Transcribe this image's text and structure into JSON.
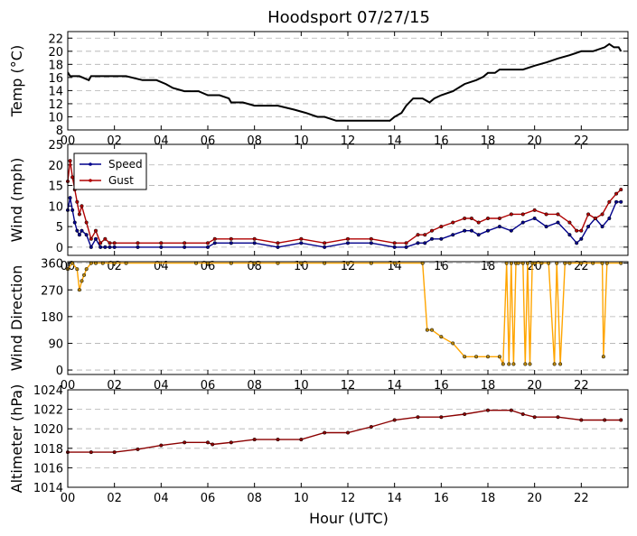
{
  "figure": {
    "title": "Hoodsport 07/27/15",
    "xlabel": "Hour (UTC)"
  },
  "colors": {
    "temp": "#000000",
    "speed": "#00008b",
    "gust": "#b00000",
    "direction_line": "#ffa500",
    "direction_marker": "#b8860b",
    "altimeter": "#8b0000",
    "grid": "#b0b0b0"
  },
  "chart_data": [
    {
      "type": "line",
      "ylabel": "Temp (°C)",
      "xlim": [
        0,
        24
      ],
      "ylim": [
        8,
        23
      ],
      "yticks": [
        "8",
        "10",
        "12",
        "14",
        "16",
        "18",
        "20",
        "22"
      ],
      "xticks": [
        "00",
        "02",
        "04",
        "06",
        "08",
        "10",
        "12",
        "14",
        "16",
        "18",
        "20",
        "22"
      ],
      "grid": true,
      "series": [
        {
          "key": "temp",
          "x": [
            0,
            0.1,
            0.5,
            0.9,
            1.0,
            1.9,
            2.5,
            3.2,
            3.8,
            4.2,
            4.5,
            5.0,
            5.6,
            6.0,
            6.5,
            6.9,
            7.0,
            7.5,
            8.0,
            9.0,
            9.7,
            10.2,
            10.7,
            11.0,
            11.5,
            12.0,
            13.0,
            13.8,
            14.0,
            14.3,
            14.5,
            14.8,
            15.2,
            15.5,
            15.7,
            16.0,
            16.5,
            17.0,
            17.5,
            17.8,
            18.0,
            18.3,
            18.5,
            19.0,
            19.5,
            20.0,
            20.5,
            21.0,
            21.5,
            22.0,
            22.5,
            23.0,
            23.2,
            23.4,
            23.6,
            23.7
          ],
          "y": [
            16.8,
            16.2,
            16.2,
            15.6,
            16.2,
            16.2,
            16.2,
            15.6,
            15.6,
            15.0,
            14.4,
            13.9,
            13.9,
            13.3,
            13.3,
            12.8,
            12.2,
            12.2,
            11.7,
            11.7,
            11.1,
            10.6,
            10.0,
            10.0,
            9.4,
            9.4,
            9.4,
            9.4,
            10.0,
            10.6,
            11.7,
            12.8,
            12.8,
            12.2,
            12.8,
            13.3,
            13.9,
            15.0,
            15.6,
            16.1,
            16.7,
            16.7,
            17.2,
            17.2,
            17.2,
            17.8,
            18.3,
            18.9,
            19.4,
            20.0,
            20.0,
            20.6,
            21.1,
            20.6,
            20.6,
            20.0
          ]
        }
      ]
    },
    {
      "type": "line",
      "ylabel": "Wind (mph)",
      "xlim": [
        0,
        24
      ],
      "ylim": [
        -2,
        25
      ],
      "yticks": [
        "0",
        "5",
        "10",
        "15",
        "20",
        "25"
      ],
      "xticks": [
        "00",
        "02",
        "04",
        "06",
        "08",
        "10",
        "12",
        "14",
        "16",
        "18",
        "20",
        "22"
      ],
      "grid": true,
      "legend": "upper-left",
      "series": [
        {
          "key": "speed",
          "name": "Speed",
          "x": [
            0,
            0.1,
            0.2,
            0.3,
            0.4,
            0.5,
            0.6,
            0.8,
            1.0,
            1.2,
            1.4,
            1.6,
            1.8,
            2.0,
            3.0,
            4.0,
            5.0,
            6.0,
            6.3,
            7.0,
            8.0,
            9.0,
            10.0,
            11.0,
            12.0,
            13.0,
            14.0,
            14.5,
            15.0,
            15.3,
            15.6,
            16.0,
            16.5,
            17.0,
            17.3,
            17.6,
            18.0,
            18.5,
            19.0,
            19.5,
            20.0,
            20.5,
            21.0,
            21.5,
            21.8,
            22.0,
            22.3,
            22.6,
            22.9,
            23.2,
            23.5,
            23.7
          ],
          "y": [
            9,
            12,
            9,
            6,
            4,
            3,
            4,
            3,
            0,
            2,
            0,
            0,
            0,
            0,
            0,
            0,
            0,
            0,
            1,
            1,
            1,
            0,
            1,
            0,
            1,
            1,
            0,
            0,
            1,
            1,
            2,
            2,
            3,
            4,
            4,
            3,
            4,
            5,
            4,
            6,
            7,
            5,
            6,
            3,
            1,
            2,
            5,
            7,
            5,
            7,
            11,
            11
          ]
        },
        {
          "key": "gust",
          "name": "Gust",
          "x": [
            0,
            0.1,
            0.2,
            0.3,
            0.4,
            0.5,
            0.6,
            0.8,
            1.0,
            1.2,
            1.4,
            1.6,
            1.8,
            2.0,
            3.0,
            4.0,
            5.0,
            6.0,
            6.3,
            7.0,
            8.0,
            9.0,
            10.0,
            11.0,
            12.0,
            13.0,
            14.0,
            14.5,
            15.0,
            15.3,
            15.6,
            16.0,
            16.5,
            17.0,
            17.3,
            17.6,
            18.0,
            18.5,
            19.0,
            19.5,
            20.0,
            20.5,
            21.0,
            21.5,
            21.8,
            22.0,
            22.3,
            22.6,
            22.9,
            23.2,
            23.5,
            23.7
          ],
          "y": [
            16,
            21,
            17,
            14,
            11,
            8,
            10,
            6,
            2,
            4,
            1,
            2,
            1,
            1,
            1,
            1,
            1,
            1,
            2,
            2,
            2,
            1,
            2,
            1,
            2,
            2,
            1,
            1,
            3,
            3,
            4,
            5,
            6,
            7,
            7,
            6,
            7,
            7,
            8,
            8,
            9,
            8,
            8,
            6,
            4,
            4,
            8,
            7,
            8,
            11,
            13,
            14
          ]
        }
      ]
    },
    {
      "type": "line",
      "ylabel": "Wind Direction",
      "xlim": [
        0,
        24
      ],
      "ylim": [
        -15,
        365
      ],
      "yticks": [
        "0",
        "90",
        "180",
        "270",
        "360"
      ],
      "xticks": [
        "00",
        "02",
        "04",
        "06",
        "08",
        "10",
        "12",
        "14",
        "16",
        "18",
        "20",
        "22"
      ],
      "grid": true,
      "series": [
        {
          "key": "direction",
          "x": [
            0,
            0.2,
            0.4,
            0.5,
            0.6,
            0.7,
            0.8,
            1.0,
            1.2,
            1.5,
            2.0,
            2.5,
            5.5,
            6.0,
            7.0,
            8.0,
            9.0,
            10.0,
            11.0,
            12.0,
            13.0,
            14.0,
            15.2,
            15.4,
            15.6,
            16.0,
            16.5,
            17.0,
            17.5,
            18.0,
            18.5,
            18.65,
            18.8,
            18.9,
            19.0,
            19.1,
            19.2,
            19.3,
            19.5,
            19.6,
            19.7,
            19.8,
            19.9,
            20.0,
            20.3,
            20.6,
            20.85,
            20.95,
            21.1,
            21.3,
            21.5,
            22.0,
            22.5,
            22.9,
            22.95,
            23.1,
            23.7
          ],
          "y": [
            340,
            360,
            340,
            270,
            300,
            320,
            340,
            360,
            360,
            360,
            360,
            360,
            360,
            360,
            360,
            360,
            360,
            360,
            360,
            360,
            360,
            360,
            360,
            135,
            135,
            112,
            90,
            45,
            45,
            45,
            45,
            20,
            360,
            20,
            360,
            20,
            360,
            360,
            360,
            20,
            360,
            20,
            360,
            360,
            360,
            360,
            20,
            360,
            20,
            360,
            360,
            360,
            360,
            360,
            45,
            360,
            360
          ]
        }
      ]
    },
    {
      "type": "line",
      "ylabel": "Altimeter (hPa)",
      "xlim": [
        0,
        24
      ],
      "ylim": [
        1014,
        1024
      ],
      "yticks": [
        "1014",
        "1016",
        "1018",
        "1020",
        "1022",
        "1024"
      ],
      "xticks": [
        "00",
        "02",
        "04",
        "06",
        "08",
        "10",
        "12",
        "14",
        "16",
        "18",
        "20",
        "22"
      ],
      "grid": true,
      "series": [
        {
          "key": "altimeter",
          "x": [
            0,
            1.0,
            2.0,
            3.0,
            4.0,
            5.0,
            6.0,
            6.2,
            7.0,
            8.0,
            9.0,
            10.0,
            11.0,
            12.0,
            13.0,
            14.0,
            15.0,
            16.0,
            17.0,
            18.0,
            19.0,
            19.5,
            20.0,
            21.0,
            22.0,
            23.0,
            23.7
          ],
          "y": [
            1017.6,
            1017.6,
            1017.6,
            1017.9,
            1018.3,
            1018.6,
            1018.6,
            1018.4,
            1018.6,
            1018.9,
            1018.9,
            1018.9,
            1019.6,
            1019.6,
            1020.2,
            1020.9,
            1021.2,
            1021.2,
            1021.5,
            1021.9,
            1021.9,
            1021.5,
            1021.2,
            1021.2,
            1020.9,
            1020.9,
            1020.9
          ]
        }
      ]
    }
  ]
}
